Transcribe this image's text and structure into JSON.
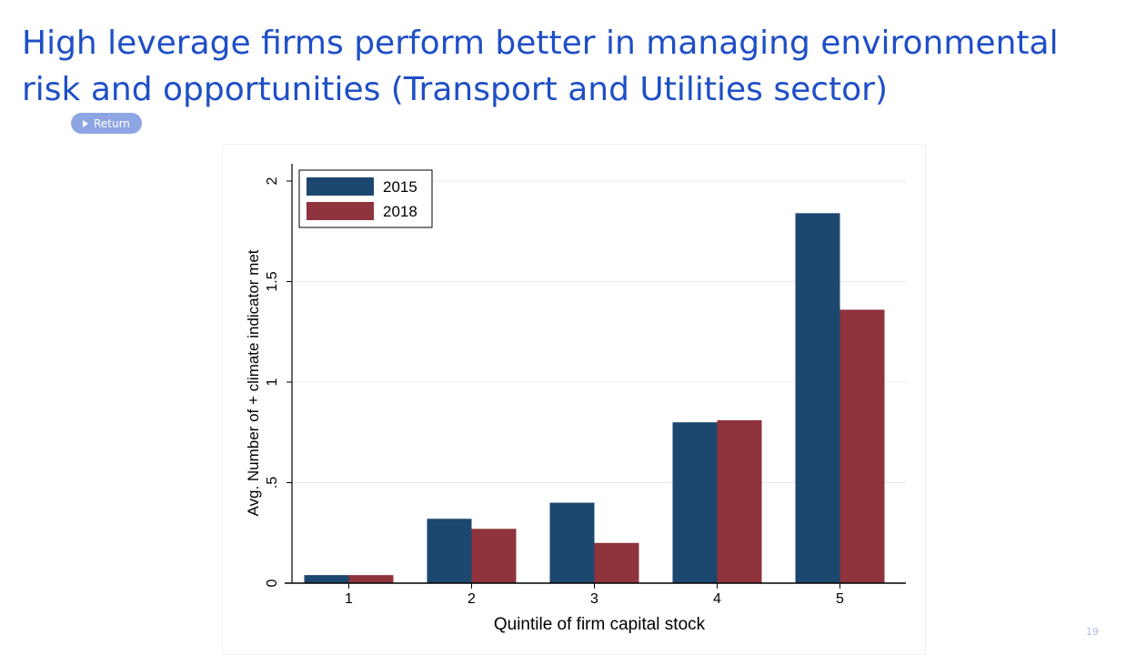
{
  "slide": {
    "title": "High leverage firms perform better in managing environmental risk and opportunities (Transport and Utilities sector)",
    "return_label": "Return",
    "page_number": "19"
  },
  "colors": {
    "title": "#1f4fc6",
    "button": "#8da6e3",
    "series_2015": "#1c476f",
    "series_2018": "#8f333c"
  },
  "chart_data": {
    "type": "bar",
    "title": "",
    "xlabel": "Quintile of firm capital stock",
    "ylabel": "Avg. Number of + climate indicator met",
    "categories": [
      "1",
      "2",
      "3",
      "4",
      "5"
    ],
    "series": [
      {
        "name": "2015",
        "color": "#1c476f",
        "values": [
          0.04,
          0.32,
          0.4,
          0.8,
          1.84
        ]
      },
      {
        "name": "2018",
        "color": "#8f333c",
        "values": [
          0.04,
          0.27,
          0.2,
          0.81,
          1.36
        ]
      }
    ],
    "ylim": [
      0,
      2
    ],
    "yticks": [
      {
        "value": 0,
        "label": "0"
      },
      {
        "value": 0.5,
        "label": ".5"
      },
      {
        "value": 1,
        "label": "1"
      },
      {
        "value": 1.5,
        "label": "1.5"
      },
      {
        "value": 2,
        "label": "2"
      }
    ],
    "grid": true,
    "legend_position": "top-left"
  }
}
